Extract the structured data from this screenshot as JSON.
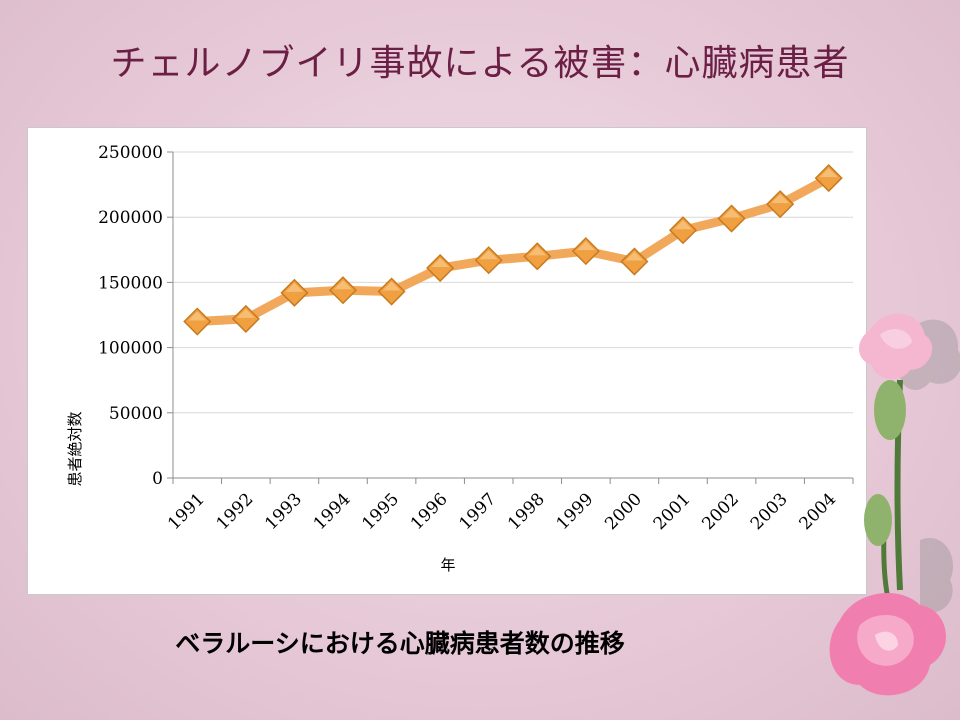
{
  "slide": {
    "title": "チェルノブイリ事故による被害：心臓病患者",
    "caption": "ベラルーシにおける心臓病患者数の推移"
  },
  "colors": {
    "title": "#6b1f45",
    "series_line": "#f2a85a",
    "marker": "#f0a040",
    "marker_edge": "#c87a1e",
    "grid": "#d9d9d9"
  },
  "chart_data": {
    "type": "line",
    "title": "",
    "xlabel": "年",
    "ylabel": "患者絶対数",
    "categories": [
      "1991",
      "1992",
      "1993",
      "1994",
      "1995",
      "1996",
      "1997",
      "1998",
      "1999",
      "2000",
      "2001",
      "2002",
      "2003",
      "2004"
    ],
    "values": [
      120000,
      122000,
      142000,
      144000,
      143000,
      161000,
      167000,
      170000,
      174000,
      166000,
      190000,
      199000,
      210000,
      230000
    ],
    "yticks": [
      "0",
      "50000",
      "100000",
      "150000",
      "200000",
      "250000"
    ],
    "ylim": [
      0,
      250000
    ],
    "grid": "horizontal",
    "legend": "none",
    "marker": "diamond"
  },
  "decoration": {
    "flower_icon": "carnation-icon"
  }
}
